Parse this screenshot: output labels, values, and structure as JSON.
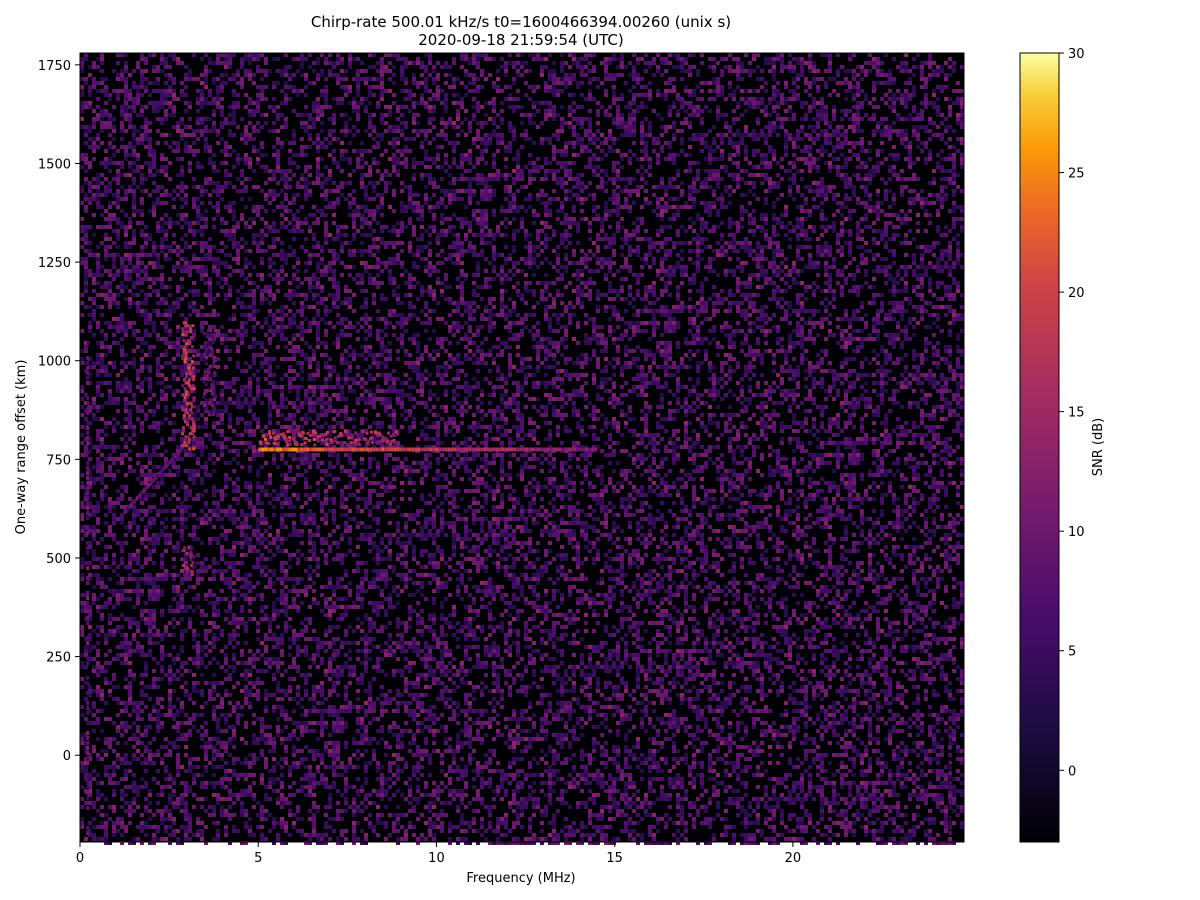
{
  "chart_data": {
    "type": "heatmap",
    "title": "Chirp-rate 500.01 kHz/s t0=1600466394.00260 (unix s)",
    "subtitle": "2020-09-18 21:59:54 (UTC)",
    "xlabel": "Frequency (MHz)",
    "ylabel": "One-way range offset (km)",
    "xlim": [
      0,
      24.8
    ],
    "ylim": [
      -220,
      1780
    ],
    "xticks": [
      0,
      5,
      10,
      15,
      20
    ],
    "yticks": [
      0,
      250,
      500,
      750,
      1000,
      1250,
      1500,
      1750
    ],
    "colorbar": {
      "label": "SNR (dB)",
      "range": [
        -3,
        30
      ],
      "ticks": [
        0,
        5,
        10,
        15,
        20,
        25,
        30
      ],
      "colormap": "inferno"
    },
    "features": [
      {
        "kind": "horizontal_trace",
        "freq_start": 5.0,
        "freq_end": 14.5,
        "range": 775,
        "peak_snr": 28
      },
      {
        "kind": "vertical_trace",
        "freq": 3.0,
        "range_start": 780,
        "range_end": 1100,
        "peak_snr": 22
      },
      {
        "kind": "vertical_trace",
        "freq": 3.6,
        "range_start": 860,
        "range_end": 1080,
        "peak_snr": 14
      },
      {
        "kind": "oblique_trace",
        "freq_start": 1.2,
        "freq_end": 2.8,
        "range_start": 620,
        "range_end": 780,
        "peak_snr": 12
      },
      {
        "kind": "patch",
        "freq": 3.0,
        "range_start": 460,
        "range_end": 530,
        "peak_snr": 18
      },
      {
        "kind": "vertical_line",
        "freq": 0.2,
        "range_start": -200,
        "range_end": 1050,
        "peak_snr": 12
      },
      {
        "kind": "vertical_line",
        "freq": 24.4,
        "range_start": -200,
        "range_end": 100,
        "peak_snr": 10
      }
    ],
    "noise_floor_snr": 2
  }
}
